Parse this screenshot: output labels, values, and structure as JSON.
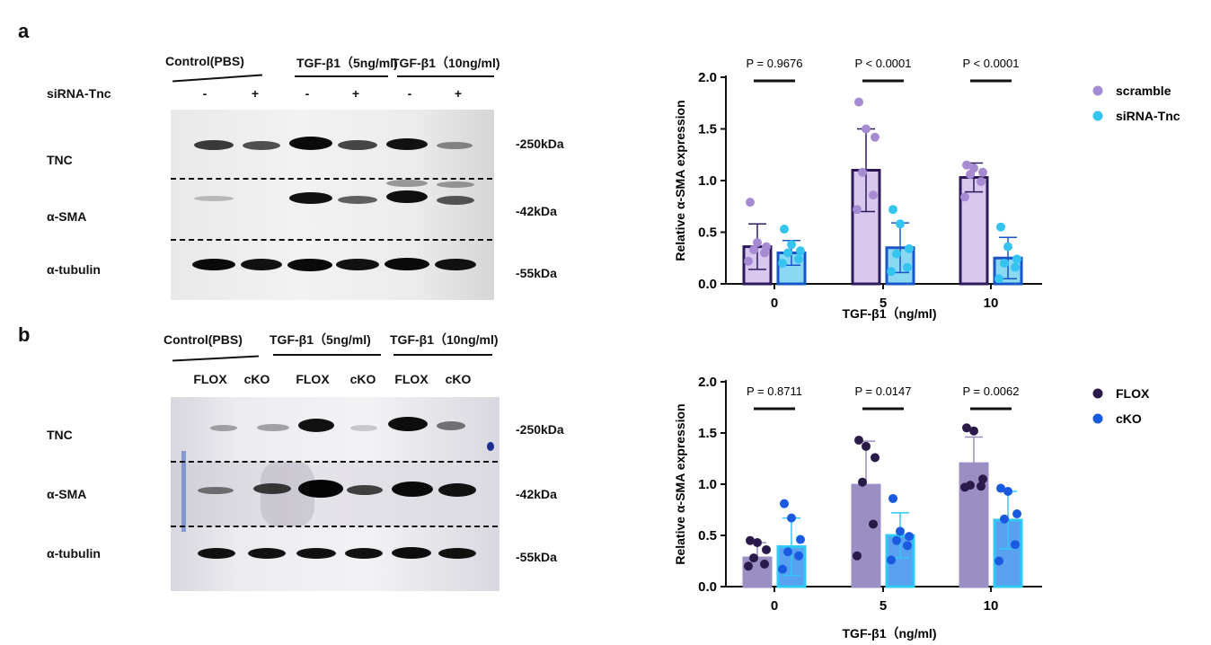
{
  "panel_a": {
    "letter": "a",
    "groups": [
      "Control(PBS)",
      "TGF-β1（5ng/ml)",
      "TGF-β1（10ng/ml)"
    ],
    "row_label": "siRNA-Tnc",
    "lane_marks": [
      "-",
      "+",
      "-",
      "+",
      "-",
      "+"
    ],
    "proteins": [
      "TNC",
      "α-SMA",
      "α-tubulin"
    ],
    "markers": [
      "-250kDa",
      "-42kDa",
      "-55kDa"
    ]
  },
  "panel_b": {
    "letter": "b",
    "groups": [
      "Control(PBS)",
      "TGF-β1（5ng/ml)",
      "TGF-β1（10ng/ml)"
    ],
    "lane_labels": [
      "FLOX",
      "cKO",
      "FLOX",
      "cKO",
      "FLOX",
      "cKO"
    ],
    "proteins": [
      "TNC",
      "α-SMA",
      "α-tubulin"
    ],
    "markers": [
      "-250kDa",
      "-42kDa",
      "-55kDa"
    ]
  },
  "chart_data": [
    {
      "type": "bar",
      "title": "",
      "xlabel": "TGF-β1（ng/ml)",
      "ylabel": "Relative α-SMA expression",
      "ylim": [
        0,
        2.0
      ],
      "yticks": [
        "0.0",
        "0.5",
        "1.0",
        "1.5",
        "2.0"
      ],
      "categories": [
        "0",
        "5",
        "10"
      ],
      "p_values": [
        "P = 0.9676",
        "P < 0.0001",
        "P < 0.0001"
      ],
      "legend_position": "top-right",
      "series": [
        {
          "name": "scramble",
          "values": [
            0.36,
            1.1,
            1.03
          ],
          "sd": [
            0.22,
            0.4,
            0.14
          ],
          "points": [
            [
              0.22,
              0.3,
              0.33,
              0.36,
              0.4,
              0.79
            ],
            [
              0.72,
              0.86,
              1.08,
              1.42,
              1.5,
              1.76
            ],
            [
              0.84,
              0.99,
              1.06,
              1.08,
              1.12,
              1.15
            ]
          ],
          "bar_color": "#d8c8ee",
          "edge_color": "#2e1a5a",
          "dot_color": "#a78bd2"
        },
        {
          "name": "siRNA-Tnc",
          "values": [
            0.3,
            0.35,
            0.25
          ],
          "sd": [
            0.12,
            0.24,
            0.2
          ],
          "points": [
            [
              0.2,
              0.24,
              0.3,
              0.32,
              0.38,
              0.53
            ],
            [
              0.12,
              0.16,
              0.29,
              0.34,
              0.58,
              0.72
            ],
            [
              0.05,
              0.16,
              0.2,
              0.24,
              0.36,
              0.55
            ]
          ],
          "bar_color": "#8ad8f2",
          "edge_color": "#1a55c8",
          "dot_color": "#35c4f0"
        }
      ]
    },
    {
      "type": "bar",
      "title": "",
      "xlabel": "TGF-β1（ng/ml)",
      "ylabel": "Relative α-SMA expression",
      "ylim": [
        0,
        2.0
      ],
      "yticks": [
        "0.0",
        "0.5",
        "1.0",
        "1.5",
        "2.0"
      ],
      "categories": [
        "0",
        "5",
        "10"
      ],
      "p_values": [
        "P = 0.8711",
        "P = 0.0147",
        "P = 0.0062"
      ],
      "legend_position": "top-right",
      "series": [
        {
          "name": "FLOX",
          "values": [
            0.28,
            0.99,
            1.2
          ],
          "sd": [
            0.15,
            0.43,
            0.26
          ],
          "points": [
            [
              0.2,
              0.22,
              0.28,
              0.36,
              0.43,
              0.45
            ],
            [
              0.3,
              0.61,
              1.02,
              1.26,
              1.37,
              1.43
            ],
            [
              0.97,
              0.98,
              0.99,
              1.05,
              1.52,
              1.55
            ]
          ],
          "bar_color": "#9b8ec3",
          "edge_color": "#9b8ec3",
          "dot_color": "#2a1a4a"
        },
        {
          "name": "cKO",
          "values": [
            0.39,
            0.5,
            0.65
          ],
          "sd": [
            0.28,
            0.22,
            0.28
          ],
          "points": [
            [
              0.17,
              0.3,
              0.34,
              0.46,
              0.67,
              0.81
            ],
            [
              0.26,
              0.4,
              0.45,
              0.49,
              0.54,
              0.86
            ],
            [
              0.25,
              0.41,
              0.66,
              0.71,
              0.93,
              0.96
            ]
          ],
          "bar_color": "#5aa0f0",
          "edge_color": "#30c8f5",
          "dot_color": "#1a5ae0"
        }
      ]
    }
  ]
}
